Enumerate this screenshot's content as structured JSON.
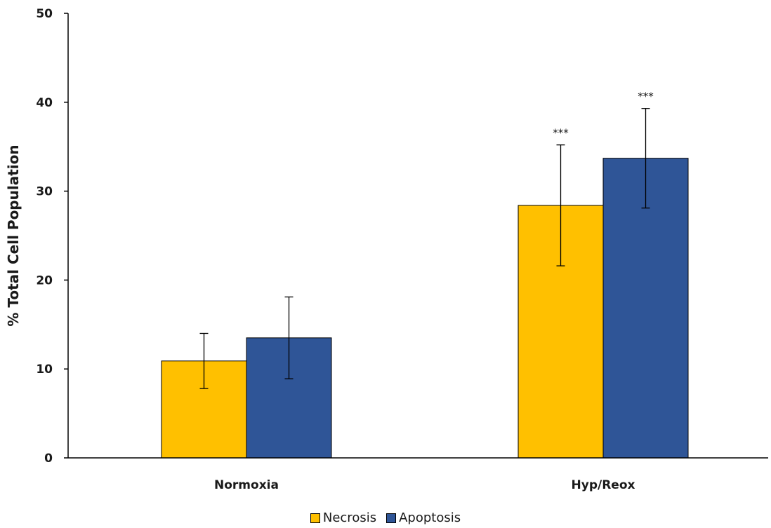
{
  "chart_data": {
    "type": "bar",
    "categories": [
      "Normoxia",
      "Hyp/Reox"
    ],
    "series": [
      {
        "name": "Necrosis",
        "color": "#FFC000",
        "values": [
          10.9,
          28.4
        ],
        "errors": [
          3.1,
          6.8
        ],
        "annotations": [
          "",
          "***"
        ]
      },
      {
        "name": "Apoptosis",
        "color": "#2F5597",
        "values": [
          13.5,
          33.7
        ],
        "errors": [
          4.6,
          5.6
        ],
        "annotations": [
          "",
          "***"
        ]
      }
    ],
    "ylabel": "% Total Cell Population",
    "xlabel": "",
    "ylim": [
      0,
      50
    ],
    "yticks": [
      0,
      10,
      20,
      30,
      40,
      50
    ],
    "grid": false,
    "legend_position": "bottom"
  }
}
